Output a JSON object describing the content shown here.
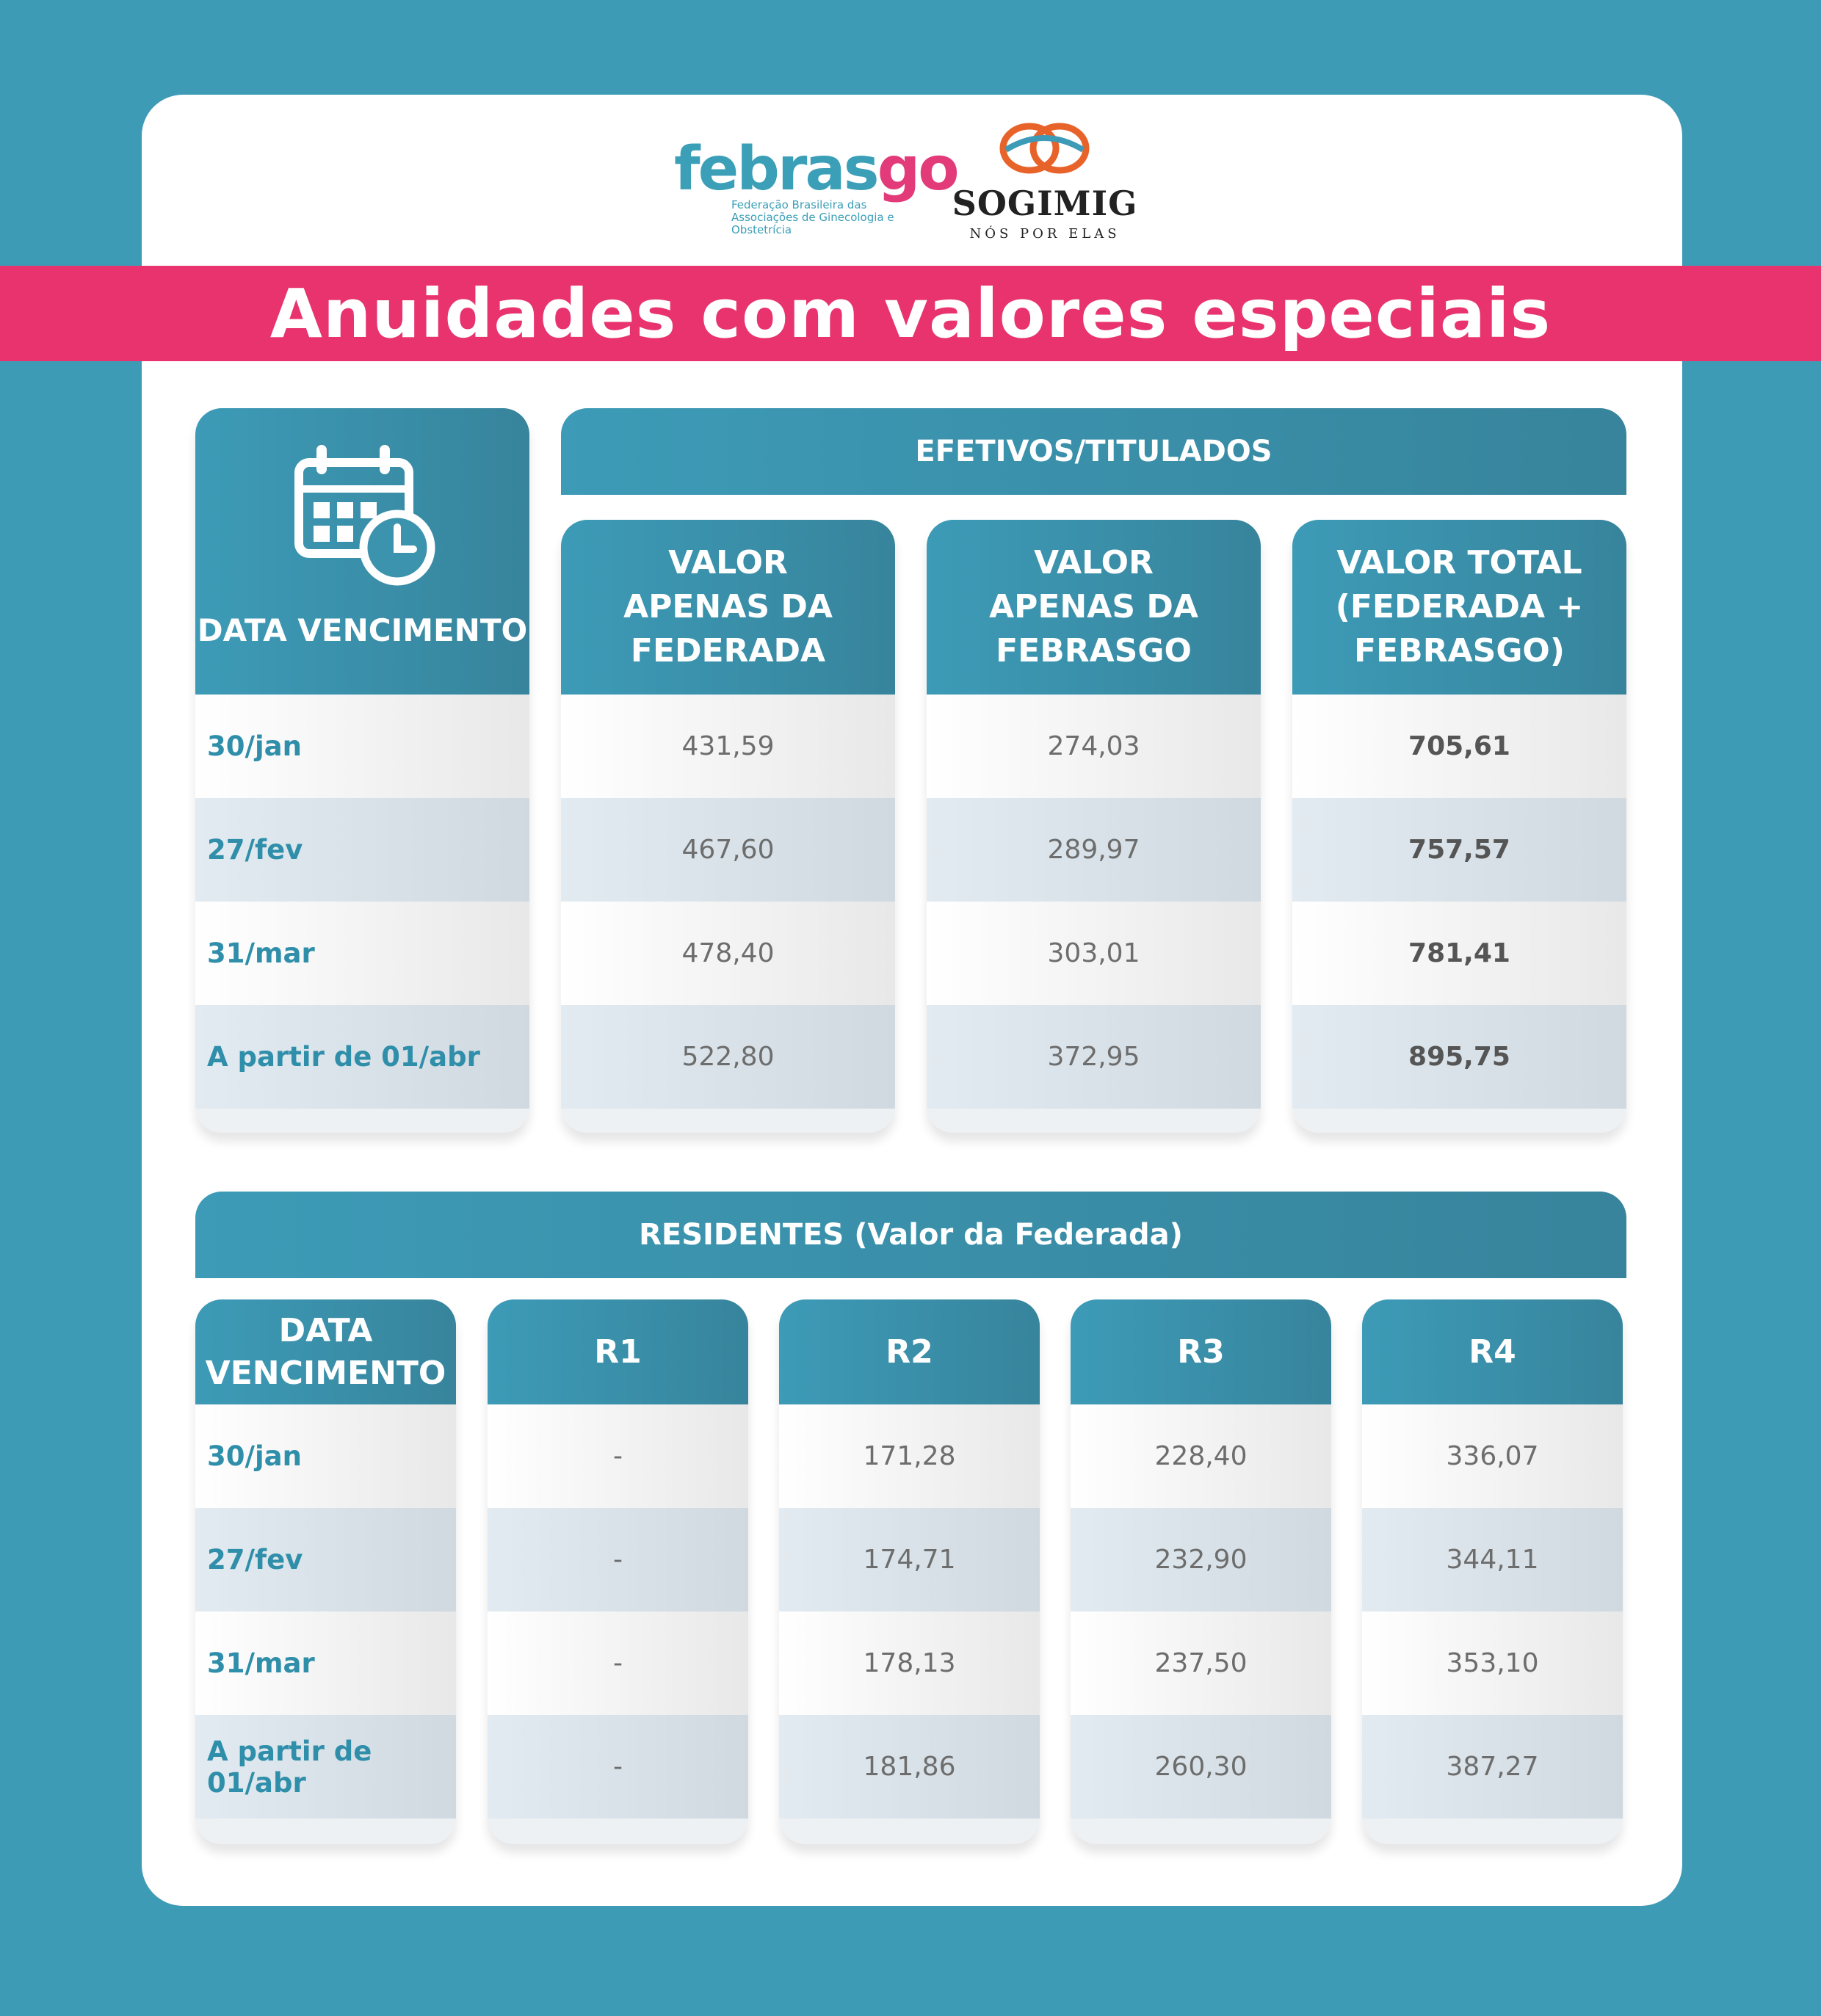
{
  "logos": {
    "febrasgo": {
      "word_a": "febras",
      "word_b": "go",
      "subtitle_1": "Federação Brasileira das",
      "subtitle_2": "Associações de Ginecologia e Obstetrícia"
    },
    "sogimig": {
      "name": "SOGIMIG",
      "tagline": "NÓS POR ELAS"
    }
  },
  "title": "Anuidades com valores especiais",
  "icons": {
    "calendar": "calendar-clock-icon"
  },
  "colors": {
    "teal": "#3d9bb7",
    "pink": "#e8336e",
    "background": "#3e9bb6"
  },
  "efetivos": {
    "group_label": "EFETIVOS/TITULADOS",
    "date_header": "DATA VENCIMENTO",
    "col1_header": [
      "VALOR",
      "APENAS DA",
      "FEDERADA"
    ],
    "col2_header": [
      "VALOR",
      "APENAS DA",
      "FEBRASGO"
    ],
    "col3_header": [
      "VALOR TOTAL",
      "(FEDERADA +",
      "FEBRASGO)"
    ],
    "rows": [
      {
        "date": "30/jan",
        "federada": "431,59",
        "febrasgo": "274,03",
        "total": "705,61"
      },
      {
        "date": "27/fev",
        "federada": "467,60",
        "febrasgo": "289,97",
        "total": "757,57"
      },
      {
        "date": "31/mar",
        "federada": "478,40",
        "febrasgo": "303,01",
        "total": "781,41"
      },
      {
        "date": "A partir de 01/abr",
        "federada": "522,80",
        "febrasgo": "372,95",
        "total": "895,75"
      }
    ]
  },
  "residentes": {
    "group_label": "RESIDENTES (Valor da Federada)",
    "date_header": [
      "DATA",
      "VENCIMENTO"
    ],
    "levels": [
      "R1",
      "R2",
      "R3",
      "R4"
    ],
    "rows": [
      {
        "date": "30/jan",
        "values": [
          "-",
          "171,28",
          "228,40",
          "336,07"
        ]
      },
      {
        "date": "27/fev",
        "values": [
          "-",
          "174,71",
          "232,90",
          "344,11"
        ]
      },
      {
        "date": "31/mar",
        "values": [
          "-",
          "178,13",
          "237,50",
          "353,10"
        ]
      },
      {
        "date": "A partir de 01/abr",
        "values": [
          "-",
          "181,86",
          "260,30",
          "387,27"
        ]
      }
    ]
  }
}
